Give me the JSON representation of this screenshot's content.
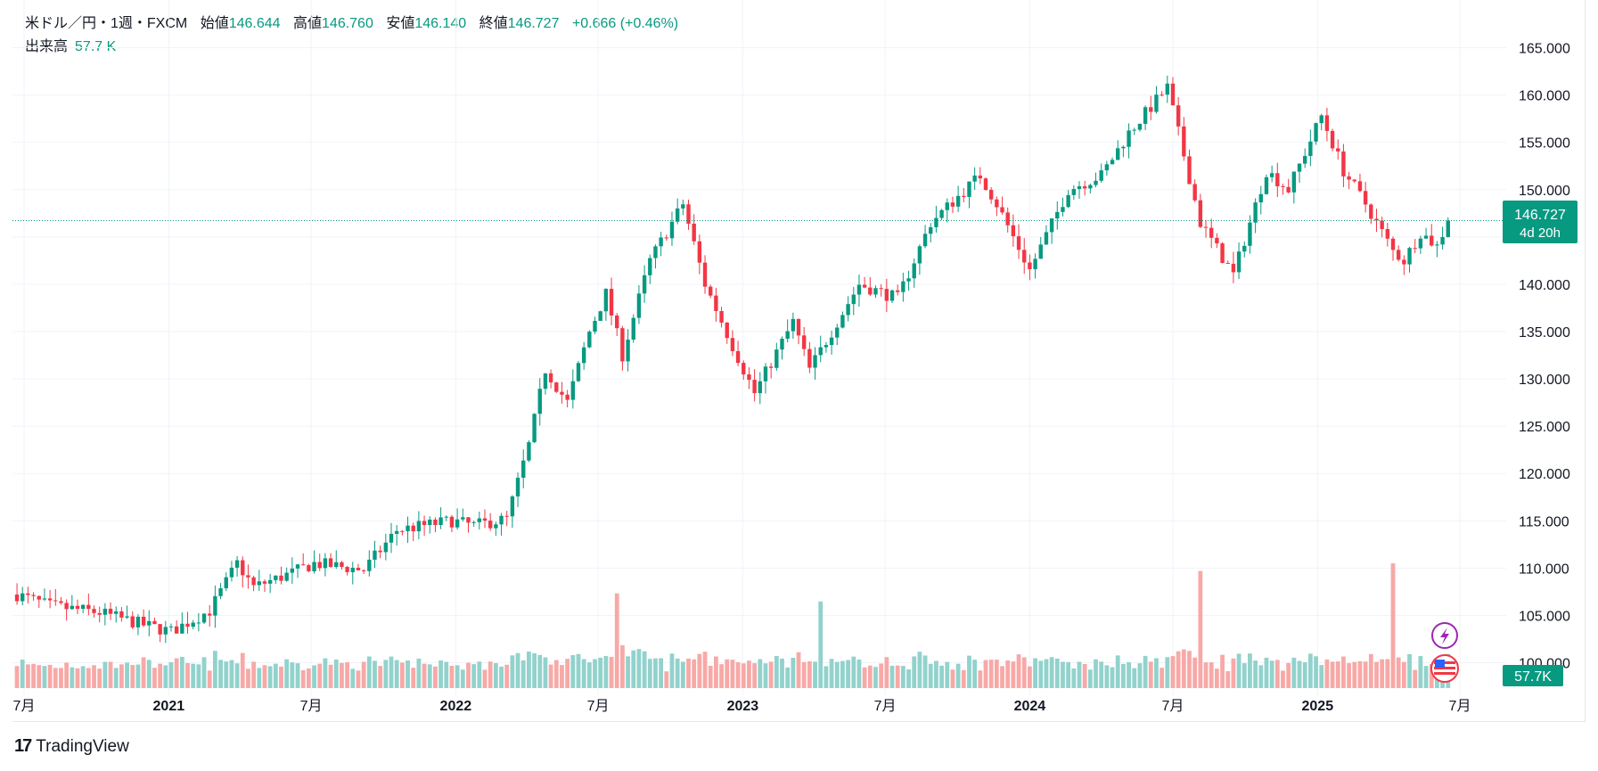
{
  "header": {
    "symbol": "米ドル／円・1週・FXCM",
    "open_label": "始値",
    "open": "146.644",
    "high_label": "高値",
    "high": "146.760",
    "low_label": "安値",
    "low": "146.140",
    "close_label": "終値",
    "close": "146.727",
    "change": "+0.666 (+0.46%)"
  },
  "volume_indicator": {
    "label": "出来高",
    "value": "57.7 K"
  },
  "price_badge": {
    "price": "146.727",
    "countdown": "4d 20h"
  },
  "volume_badge": "57.7K",
  "footer": {
    "brand_mark": "17",
    "brand_name": "TradingView"
  },
  "colors": {
    "up": "#089981",
    "down": "#f23645",
    "vol_up": "#92d2cc",
    "vol_down": "#f7a9a7",
    "grid": "#f0f3fa"
  },
  "chart_data": {
    "type": "candlestick",
    "instrument": "USD/JPY",
    "interval": "1W",
    "y_axis_ticks": [
      100,
      105,
      110,
      115,
      120,
      125,
      130,
      135,
      140,
      145,
      150,
      155,
      160,
      165
    ],
    "x_axis_labels": [
      "7月",
      "2021",
      "7月",
      "2022",
      "7月",
      "2023",
      "7月",
      "2024",
      "7月",
      "2025",
      "7月"
    ],
    "x_axis_dates": [
      "2020-07-01",
      "2021-01-01",
      "2021-07-01",
      "2022-01-01",
      "2022-07-01",
      "2023-01-01",
      "2023-07-01",
      "2024-01-01",
      "2024-07-01",
      "2025-01-01",
      "2025-07-01"
    ],
    "series_anchors": [
      [
        "2020-06-22",
        107.2
      ],
      [
        "2020-08-03",
        106.0
      ],
      [
        "2020-10-05",
        105.3
      ],
      [
        "2020-11-30",
        104.0
      ],
      [
        "2021-01-04",
        103.3
      ],
      [
        "2021-02-22",
        105.5
      ],
      [
        "2021-03-29",
        110.5
      ],
      [
        "2021-04-19",
        108.0
      ],
      [
        "2021-06-07",
        109.5
      ],
      [
        "2021-07-05",
        110.5
      ],
      [
        "2021-09-06",
        109.8
      ],
      [
        "2021-10-18",
        114.0
      ],
      [
        "2021-11-22",
        114.5
      ],
      [
        "2021-12-27",
        115.0
      ],
      [
        "2022-01-24",
        114.5
      ],
      [
        "2022-03-07",
        115.2
      ],
      [
        "2022-04-04",
        123.0
      ],
      [
        "2022-04-25",
        131.0
      ],
      [
        "2022-05-23",
        127.5
      ],
      [
        "2022-06-20",
        135.0
      ],
      [
        "2022-07-11",
        139.0
      ],
      [
        "2022-08-01",
        132.5
      ],
      [
        "2022-09-05",
        142.5
      ],
      [
        "2022-10-17",
        148.5
      ],
      [
        "2022-11-14",
        140.0
      ],
      [
        "2022-12-19",
        133.5
      ],
      [
        "2023-01-16",
        128.5
      ],
      [
        "2023-03-06",
        136.0
      ],
      [
        "2023-03-27",
        131.0
      ],
      [
        "2023-05-29",
        140.0
      ],
      [
        "2023-07-17",
        138.5
      ],
      [
        "2023-08-28",
        146.5
      ],
      [
        "2023-10-30",
        151.5
      ],
      [
        "2023-11-20",
        148.5
      ],
      [
        "2024-01-01",
        141.5
      ],
      [
        "2024-02-19",
        150.0
      ],
      [
        "2024-04-01",
        151.5
      ],
      [
        "2024-05-06",
        156.0
      ],
      [
        "2024-06-24",
        160.8
      ],
      [
        "2024-08-05",
        146.5
      ],
      [
        "2024-09-16",
        141.0
      ],
      [
        "2024-10-28",
        152.0
      ],
      [
        "2024-11-25",
        150.0
      ],
      [
        "2025-01-06",
        157.8
      ],
      [
        "2025-02-03",
        152.0
      ],
      [
        "2025-03-03",
        148.5
      ],
      [
        "2025-04-07",
        143.5
      ],
      [
        "2025-04-21",
        142.5
      ],
      [
        "2025-05-12",
        145.5
      ],
      [
        "2025-06-02",
        144.0
      ],
      [
        "2025-06-16",
        146.727
      ]
    ],
    "volume_events": [
      [
        "2022-07-25",
        1.55
      ],
      [
        "2023-04-10",
        1.45
      ],
      [
        "2024-08-05",
        1.7
      ],
      [
        "2025-04-07",
        2.0
      ]
    ]
  }
}
